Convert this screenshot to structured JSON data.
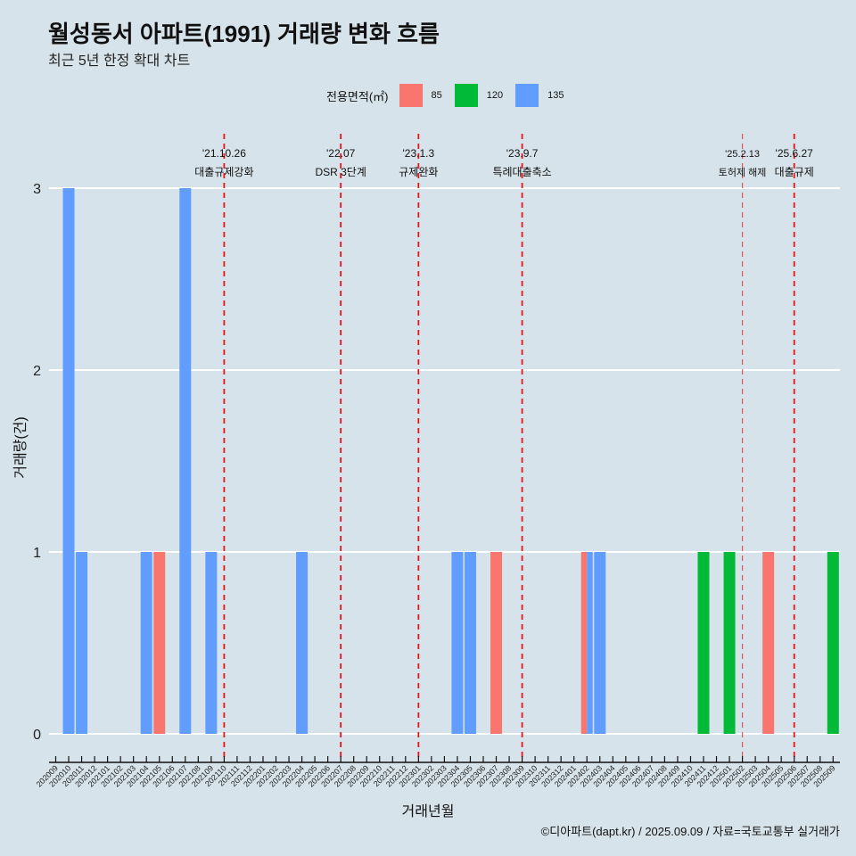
{
  "title": "월성동서 아파트(1991) 거래량 변화 흐름",
  "subtitle": "최근 5년 한정 확대 차트",
  "caption": "©디아파트(dapt.kr) / 2025.09.09 / 자료=국토교통부 실거래가",
  "legend": {
    "title": "전용면적(㎡)",
    "items": [
      {
        "label": "85",
        "color": "#f8766d"
      },
      {
        "label": "120",
        "color": "#00ba38"
      },
      {
        "label": "135",
        "color": "#619cff"
      }
    ]
  },
  "chart_data": {
    "type": "bar",
    "title": "월성동서 아파트(1991) 거래량 변화 흐름",
    "xlabel": "거래년월",
    "ylabel": "거래량(건)",
    "ylim": [
      0,
      3
    ],
    "yticks": [
      "0",
      "1",
      "2",
      "3"
    ],
    "categories": [
      "202009",
      "202010",
      "202011",
      "202012",
      "202101",
      "202102",
      "202103",
      "202104",
      "202105",
      "202106",
      "202107",
      "202108",
      "202109",
      "202110",
      "202111",
      "202112",
      "202201",
      "202202",
      "202203",
      "202204",
      "202205",
      "202206",
      "202207",
      "202208",
      "202209",
      "202210",
      "202211",
      "202212",
      "202301",
      "202302",
      "202303",
      "202304",
      "202305",
      "202306",
      "202307",
      "202308",
      "202309",
      "202310",
      "202311",
      "202312",
      "202401",
      "202402",
      "202403",
      "202404",
      "202405",
      "202406",
      "202407",
      "202408",
      "202409",
      "202410",
      "202411",
      "202412",
      "202501",
      "202502",
      "202503",
      "202504",
      "202505",
      "202506",
      "202507",
      "202508",
      "202509"
    ],
    "bars": [
      {
        "month": "202010",
        "area": "135",
        "value": 3
      },
      {
        "month": "202011",
        "area": "135",
        "value": 1
      },
      {
        "month": "202104",
        "area": "135",
        "value": 1
      },
      {
        "month": "202105",
        "area": "85",
        "value": 1
      },
      {
        "month": "202107",
        "area": "135",
        "value": 3
      },
      {
        "month": "202109",
        "area": "135",
        "value": 1
      },
      {
        "month": "202204",
        "area": "135",
        "value": 1
      },
      {
        "month": "202304",
        "area": "135",
        "value": 1
      },
      {
        "month": "202305",
        "area": "135",
        "value": 1
      },
      {
        "month": "202307",
        "area": "85",
        "value": 1
      },
      {
        "month": "202402",
        "area": "85",
        "value": 1,
        "dodge": 0
      },
      {
        "month": "202402",
        "area": "135",
        "value": 1,
        "dodge": 1
      },
      {
        "month": "202403",
        "area": "135",
        "value": 1
      },
      {
        "month": "202411",
        "area": "120",
        "value": 1
      },
      {
        "month": "202501",
        "area": "120",
        "value": 1
      },
      {
        "month": "202504",
        "area": "85",
        "value": 1
      },
      {
        "month": "202509",
        "area": "120",
        "value": 1
      }
    ],
    "events": [
      {
        "month": "202110",
        "date": "'21.10.26",
        "label": "대출규제강화"
      },
      {
        "month": "202207",
        "date": "'22.07",
        "label": "DSR 3단계"
      },
      {
        "month": "202301",
        "date": "'23.1.3",
        "label": "규제완화"
      },
      {
        "month": "202309",
        "date": "'23.9.7",
        "label": "특례대출축소"
      },
      {
        "month": "202502",
        "date": "'25.2.13",
        "label": "토허제 해제",
        "faint": true
      },
      {
        "month": "202506",
        "date": "'25.6.27",
        "label": "대출규제"
      }
    ],
    "legend_position": "top",
    "grid": true
  }
}
